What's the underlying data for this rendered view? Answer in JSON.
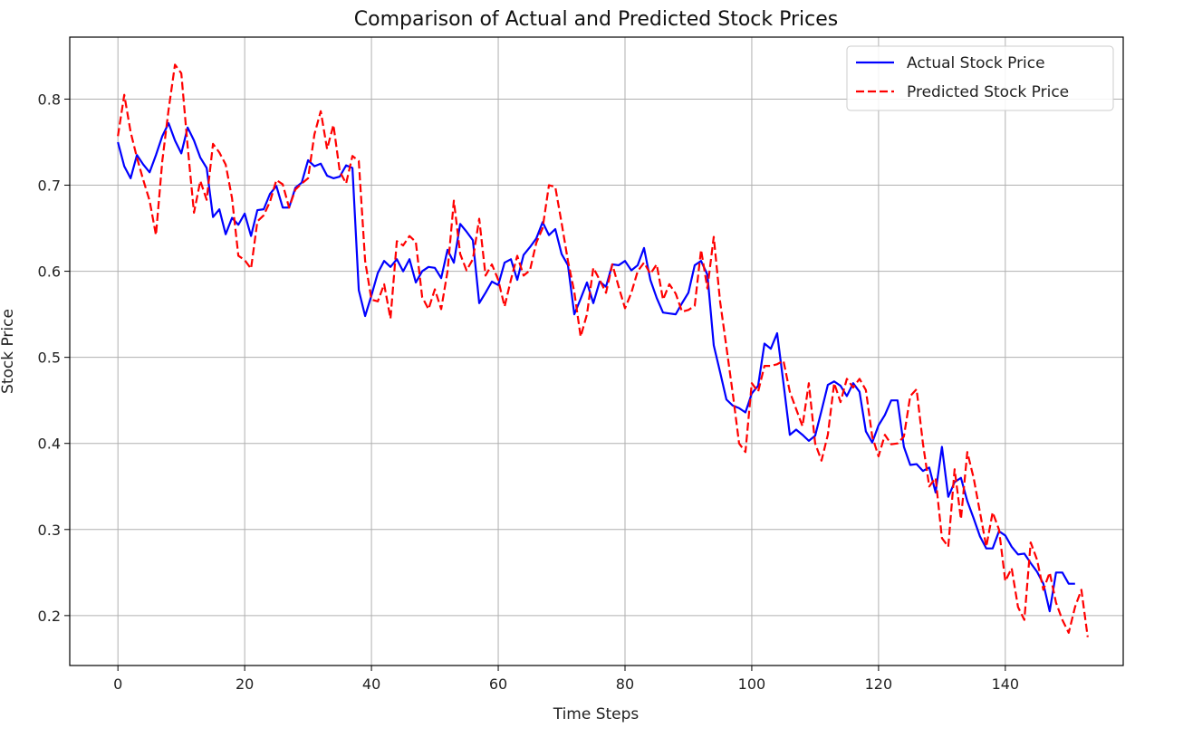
{
  "chart_data": {
    "type": "line",
    "title": "Comparison of Actual and Predicted Stock Prices",
    "xlabel": "Time Steps",
    "ylabel": "Stock Price",
    "xlim": [
      -7.6,
      158.6
    ],
    "ylim": [
      0.142,
      0.872
    ],
    "xticks": [
      0,
      20,
      40,
      60,
      80,
      100,
      120,
      140
    ],
    "yticks": [
      0.2,
      0.3,
      0.4,
      0.5,
      0.6,
      0.7,
      0.8
    ],
    "xtick_labels": [
      "0",
      "20",
      "40",
      "60",
      "80",
      "100",
      "120",
      "140"
    ],
    "ytick_labels": [
      "0.2",
      "0.3",
      "0.4",
      "0.5",
      "0.6",
      "0.7",
      "0.8"
    ],
    "grid": true,
    "legend_position": "top-right",
    "series": [
      {
        "name": "Actual Stock Price",
        "color": "#0000ff",
        "style": "solid",
        "values": [
          0.75,
          0.722,
          0.708,
          0.735,
          0.724,
          0.715,
          0.735,
          0.757,
          0.772,
          0.752,
          0.737,
          0.767,
          0.752,
          0.732,
          0.72,
          0.663,
          0.672,
          0.643,
          0.662,
          0.654,
          0.667,
          0.641,
          0.671,
          0.672,
          0.69,
          0.699,
          0.674,
          0.674,
          0.697,
          0.703,
          0.729,
          0.722,
          0.725,
          0.711,
          0.708,
          0.71,
          0.723,
          0.72,
          0.578,
          0.548,
          0.572,
          0.598,
          0.612,
          0.605,
          0.614,
          0.6,
          0.614,
          0.587,
          0.6,
          0.605,
          0.604,
          0.592,
          0.625,
          0.61,
          0.655,
          0.646,
          0.636,
          0.563,
          0.575,
          0.588,
          0.584,
          0.61,
          0.614,
          0.59,
          0.619,
          0.628,
          0.638,
          0.657,
          0.642,
          0.649,
          0.62,
          0.607,
          0.55,
          0.568,
          0.587,
          0.563,
          0.588,
          0.582,
          0.608,
          0.607,
          0.612,
          0.601,
          0.607,
          0.627,
          0.59,
          0.569,
          0.552,
          0.551,
          0.55,
          0.563,
          0.575,
          0.607,
          0.612,
          0.596,
          0.514,
          0.483,
          0.451,
          0.444,
          0.441,
          0.436,
          0.458,
          0.467,
          0.516,
          0.51,
          0.528,
          0.47,
          0.41,
          0.416,
          0.41,
          0.403,
          0.409,
          0.438,
          0.468,
          0.472,
          0.467,
          0.455,
          0.47,
          0.46,
          0.414,
          0.401,
          0.421,
          0.433,
          0.45,
          0.45,
          0.396,
          0.375,
          0.376,
          0.368,
          0.372,
          0.343,
          0.396,
          0.338,
          0.355,
          0.36,
          0.333,
          0.313,
          0.292,
          0.278,
          0.278,
          0.298,
          0.293,
          0.28,
          0.271,
          0.272,
          0.261,
          0.251,
          0.237,
          0.205,
          0.25,
          0.25,
          0.237,
          0.237
        ]
      },
      {
        "name": "Predicted Stock Price",
        "color": "#ff0000",
        "style": "dashed",
        "values": [
          0.757,
          0.805,
          0.762,
          0.732,
          0.706,
          0.682,
          0.642,
          0.728,
          0.788,
          0.84,
          0.83,
          0.745,
          0.668,
          0.705,
          0.683,
          0.748,
          0.738,
          0.724,
          0.685,
          0.618,
          0.613,
          0.603,
          0.658,
          0.665,
          0.681,
          0.706,
          0.701,
          0.674,
          0.695,
          0.702,
          0.708,
          0.759,
          0.786,
          0.742,
          0.77,
          0.716,
          0.702,
          0.734,
          0.728,
          0.612,
          0.567,
          0.565,
          0.585,
          0.545,
          0.635,
          0.63,
          0.641,
          0.634,
          0.57,
          0.556,
          0.579,
          0.556,
          0.6,
          0.682,
          0.62,
          0.601,
          0.614,
          0.661,
          0.595,
          0.608,
          0.59,
          0.559,
          0.59,
          0.618,
          0.595,
          0.601,
          0.633,
          0.65,
          0.7,
          0.698,
          0.656,
          0.612,
          0.576,
          0.524,
          0.55,
          0.604,
          0.59,
          0.575,
          0.608,
          0.582,
          0.557,
          0.575,
          0.6,
          0.61,
          0.597,
          0.608,
          0.567,
          0.585,
          0.574,
          0.553,
          0.555,
          0.56,
          0.625,
          0.58,
          0.64,
          0.565,
          0.512,
          0.458,
          0.4,
          0.39,
          0.47,
          0.46,
          0.49,
          0.49,
          0.492,
          0.496,
          0.46,
          0.44,
          0.42,
          0.47,
          0.4,
          0.38,
          0.41,
          0.47,
          0.448,
          0.475,
          0.465,
          0.475,
          0.462,
          0.408,
          0.385,
          0.41,
          0.399,
          0.4,
          0.408,
          0.455,
          0.463,
          0.4,
          0.35,
          0.36,
          0.29,
          0.28,
          0.37,
          0.312,
          0.39,
          0.36,
          0.32,
          0.28,
          0.32,
          0.3,
          0.24,
          0.255,
          0.21,
          0.195,
          0.285,
          0.265,
          0.23,
          0.25,
          0.215,
          0.195,
          0.18,
          0.21,
          0.23,
          0.175
        ]
      }
    ]
  }
}
